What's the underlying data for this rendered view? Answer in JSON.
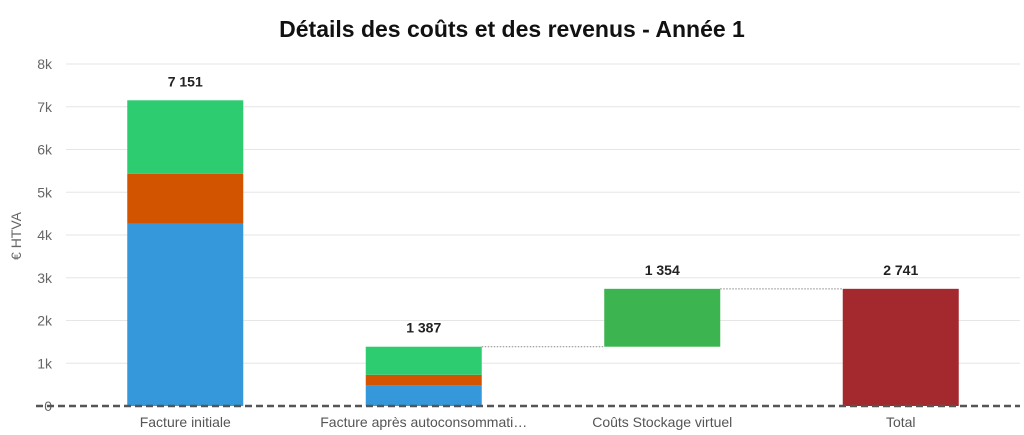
{
  "chart_data": {
    "type": "bar",
    "subtype": "waterfall-stacked",
    "title": "Détails des coûts et des revenus - Année 1",
    "xlabel": "",
    "ylabel": "€ HTVA",
    "ylim": [
      0,
      8000
    ],
    "yticks": [
      {
        "value": 0,
        "label": "0"
      },
      {
        "value": 1000,
        "label": "1k"
      },
      {
        "value": 2000,
        "label": "2k"
      },
      {
        "value": 3000,
        "label": "3k"
      },
      {
        "value": 4000,
        "label": "4k"
      },
      {
        "value": 5000,
        "label": "5k"
      },
      {
        "value": 6000,
        "label": "6k"
      },
      {
        "value": 7000,
        "label": "7k"
      },
      {
        "value": 8000,
        "label": "8k"
      }
    ],
    "grid": true,
    "legend": "none",
    "categories": [
      "Facture initiale",
      "Facture après autoconsommati…",
      "Coûts Stockage virtuel",
      "Total"
    ],
    "bars": [
      {
        "category": "Facture initiale",
        "label": "7 151",
        "segments": [
          {
            "from": 0,
            "to": 4270,
            "color": "#3498db"
          },
          {
            "from": 4270,
            "to": 5430,
            "color": "#d35400"
          },
          {
            "from": 5430,
            "to": 7151,
            "color": "#2ecc71"
          }
        ]
      },
      {
        "category": "Facture après autoconsommati…",
        "label": "1 387",
        "segments": [
          {
            "from": 0,
            "to": 490,
            "color": "#3498db"
          },
          {
            "from": 490,
            "to": 730,
            "color": "#d35400"
          },
          {
            "from": 730,
            "to": 1387,
            "color": "#2ecc71"
          }
        ]
      },
      {
        "category": "Coûts Stockage virtuel",
        "label": "1 354",
        "segments": [
          {
            "from": 1387,
            "to": 2741,
            "color": "#3cb44f"
          }
        ]
      },
      {
        "category": "Total",
        "label": "2 741",
        "segments": [
          {
            "from": 0,
            "to": 2741,
            "color": "#a3292e"
          }
        ]
      }
    ],
    "connectors": [
      {
        "from_bar": 1,
        "to_bar": 2,
        "value": 1387
      },
      {
        "from_bar": 2,
        "to_bar": 3,
        "value": 2741
      }
    ]
  }
}
